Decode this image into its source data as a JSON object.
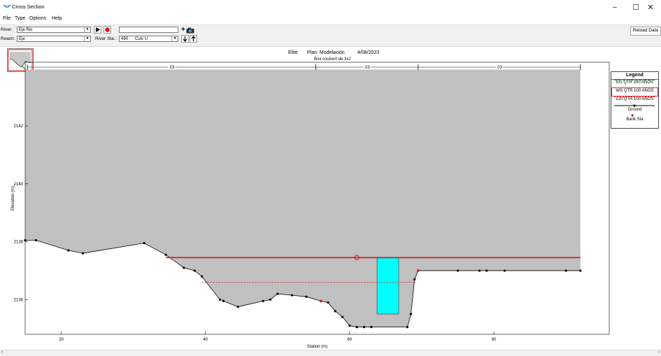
{
  "window": {
    "title": "Cross Section",
    "minimize": "−",
    "maximize": "☐",
    "close": "✕"
  },
  "menu": [
    {
      "label": "File"
    },
    {
      "label": "Type"
    },
    {
      "label": "Options"
    },
    {
      "label": "Help"
    }
  ],
  "toolbar": {
    "river_label": "River:",
    "river_value": "Eje Rio",
    "reach_label": "Reach:",
    "reach_value": "Eje",
    "station_label": "River Sta.:",
    "station_value": "490",
    "station_desc": "Culv U",
    "reload_label": "Reload Data",
    "colors": {
      "play": "#000000",
      "record": "#e01010"
    }
  },
  "header": {
    "project": "Elite",
    "plan": "Plan: Modelación",
    "date": "4/08/2023",
    "subtitle": "Box coulvert de 3x2",
    "mannings": [
      ".03",
      ".03",
      ".03"
    ]
  },
  "legend": {
    "title": "Legend",
    "items": [
      {
        "label": "EG QTR 100 AÑOS",
        "color": "#2a8c2a"
      },
      {
        "label": "WS QTR 100 AÑOS",
        "color": "#e01010"
      },
      {
        "label": "Crit QTR 100 AÑOS",
        "color": "#e01010"
      },
      {
        "label": "Ground",
        "color": "#000000"
      },
      {
        "label": "Bank Sta",
        "color": "#e01010"
      }
    ]
  },
  "chart_data": {
    "type": "line",
    "xlabel": "Station (m)",
    "ylabel": "Elevation (m)",
    "xlim": [
      15,
      96
    ],
    "ylim": [
      2134.8,
      2144.2
    ],
    "xticks": [
      20,
      40,
      60,
      80
    ],
    "yticks": [
      2136,
      2138,
      2140,
      2142
    ],
    "ground": [
      [
        15,
        2138.05
      ],
      [
        16.5,
        2138.05
      ],
      [
        21,
        2137.7
      ],
      [
        23,
        2137.6
      ],
      [
        31.5,
        2137.95
      ],
      [
        34.5,
        2137.55
      ],
      [
        37,
        2137.1
      ],
      [
        38.5,
        2137.0
      ],
      [
        39.5,
        2136.8
      ],
      [
        42,
        2136.0
      ],
      [
        42.5,
        2135.95
      ],
      [
        44.5,
        2135.75
      ],
      [
        48,
        2135.95
      ],
      [
        49,
        2136.0
      ],
      [
        50,
        2136.2
      ],
      [
        52,
        2136.15
      ],
      [
        54,
        2136.1
      ],
      [
        56,
        2135.95
      ],
      [
        57,
        2135.9
      ],
      [
        58,
        2135.6
      ],
      [
        59,
        2135.4
      ],
      [
        60,
        2135.1
      ],
      [
        61,
        2135.05
      ],
      [
        62,
        2135.05
      ],
      [
        63,
        2135.05
      ],
      [
        68,
        2135.05
      ],
      [
        68.5,
        2135.5
      ],
      [
        69,
        2136.7
      ],
      [
        69.5,
        2137.0
      ],
      [
        75,
        2137.0
      ],
      [
        78,
        2137.0
      ],
      [
        79,
        2137.0
      ],
      [
        81.5,
        2137.0
      ],
      [
        90,
        2137.0
      ],
      [
        92,
        2137.0
      ]
    ],
    "bank_stations": [
      [
        56,
        2135.95
      ],
      [
        69.5,
        2137.0
      ]
    ],
    "ws": {
      "name": "WS QTR 100 AÑOS",
      "x": [
        34.5,
        92
      ],
      "y": 2137.45
    },
    "crit": {
      "name": "Crit QTR 100 AÑOS",
      "x": [
        39.5,
        69.3
      ],
      "y": 2136.6
    },
    "culvert": {
      "x": [
        63.8,
        66.8
      ],
      "y": [
        2135.5,
        2137.45
      ],
      "color": "#00ffff"
    },
    "top_fill": 2143.95,
    "crit_marker": [
      61,
      2137.45
    ],
    "n_breaks": [
      15.3,
      55.3,
      69.5,
      92
    ]
  }
}
